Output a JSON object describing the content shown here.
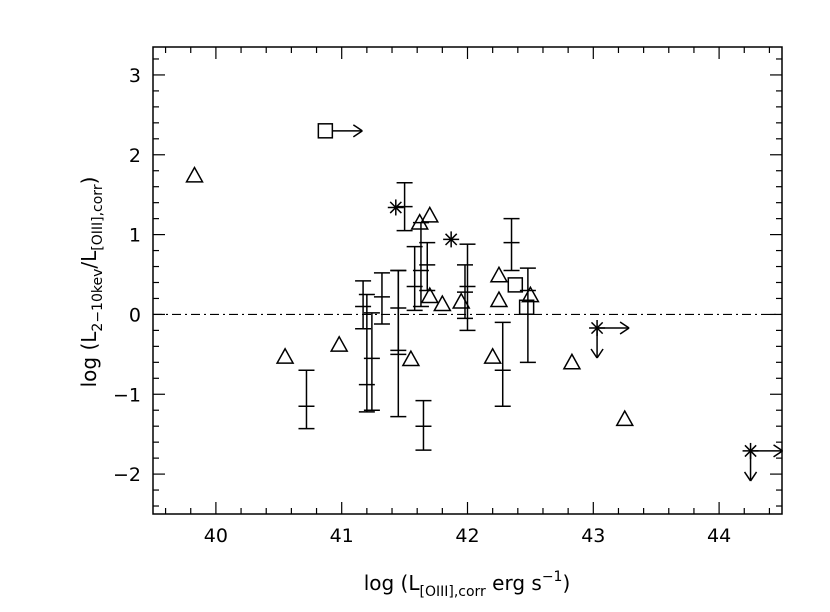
{
  "chart_data": {
    "type": "scatter",
    "title": "",
    "xlim": [
      39.5,
      44.5
    ],
    "ylim": [
      -2.5,
      3.35
    ],
    "x_ticks": [
      40,
      41,
      42,
      43,
      44
    ],
    "x_tick_labels": [
      "40",
      "41",
      "42",
      "43",
      "44"
    ],
    "y_ticks": [
      -2,
      -1,
      0,
      1,
      2,
      3
    ],
    "y_tick_labels": [
      "−2",
      "−1",
      "0",
      "1",
      "2",
      "3"
    ],
    "xlabel": {
      "pre": "log (L",
      "sub": "[OIII],corr",
      "mid": " erg s",
      "sup": "−1",
      "post": ")"
    },
    "ylabel": {
      "pre": "log (L",
      "sub1": "2−10kev",
      "mid": "/L",
      "sub2": "[OIII],corr",
      "post": ")"
    },
    "reference_line": {
      "y": 0,
      "style": "dash-dot"
    },
    "grid": false,
    "legend": "none",
    "marker_color": "#000000",
    "triangles": [
      {
        "x": 39.83,
        "y": 1.74
      },
      {
        "x": 40.55,
        "y": -0.53
      },
      {
        "x": 40.98,
        "y": -0.38
      },
      {
        "x": 41.55,
        "y": -0.56
      },
      {
        "x": 41.62,
        "y": 1.15
      },
      {
        "x": 41.7,
        "y": 1.24
      },
      {
        "x": 41.7,
        "y": 0.23
      },
      {
        "x": 41.8,
        "y": 0.13
      },
      {
        "x": 41.95,
        "y": 0.16
      },
      {
        "x": 42.2,
        "y": -0.53
      },
      {
        "x": 42.25,
        "y": 0.49
      },
      {
        "x": 42.25,
        "y": 0.18
      },
      {
        "x": 42.5,
        "y": 0.24
      },
      {
        "x": 42.83,
        "y": -0.6
      },
      {
        "x": 43.25,
        "y": -1.31
      }
    ],
    "squares": [
      {
        "x": 40.87,
        "y": 2.3,
        "arrow": "right"
      },
      {
        "x": 42.38,
        "y": 0.37
      },
      {
        "x": 42.47,
        "y": 0.09
      }
    ],
    "asterisks": [
      {
        "x": 41.43,
        "y": 1.34
      },
      {
        "x": 41.87,
        "y": 0.94
      },
      {
        "x": 43.03,
        "y": -0.17,
        "arrows": [
          "right",
          "down"
        ]
      },
      {
        "x": 44.25,
        "y": -1.71,
        "arrows": [
          "right",
          "down"
        ]
      }
    ],
    "error_bars": [
      {
        "x": 40.72,
        "y": -1.15,
        "lo": -1.43,
        "hi": -0.7
      },
      {
        "x": 41.17,
        "y": 0.1,
        "lo": -0.18,
        "hi": 0.42
      },
      {
        "x": 41.2,
        "y": -0.88,
        "lo": -1.22,
        "hi": 0.25
      },
      {
        "x": 41.24,
        "y": -0.55,
        "lo": -1.2,
        "hi": 0.02
      },
      {
        "x": 41.32,
        "y": 0.22,
        "lo": -0.12,
        "hi": 0.52
      },
      {
        "x": 41.45,
        "y": -0.45,
        "lo": -1.28,
        "hi": 0.55
      },
      {
        "x": 41.45,
        "y": 0.08,
        "lo": -0.5,
        "hi": 0.55
      },
      {
        "x": 41.5,
        "y": 1.35,
        "lo": 1.05,
        "hi": 1.65
      },
      {
        "x": 41.58,
        "y": 0.35,
        "lo": 0.05,
        "hi": 0.85
      },
      {
        "x": 41.63,
        "y": 0.55,
        "lo": 0.1,
        "hi": 1.15
      },
      {
        "x": 41.65,
        "y": -1.4,
        "lo": -1.7,
        "hi": -1.08
      },
      {
        "x": 41.68,
        "y": 0.62,
        "lo": 0.3,
        "hi": 0.9
      },
      {
        "x": 41.98,
        "y": 0.28,
        "lo": -0.05,
        "hi": 0.62
      },
      {
        "x": 42.0,
        "y": 0.35,
        "lo": -0.2,
        "hi": 0.88
      },
      {
        "x": 42.28,
        "y": -0.7,
        "lo": -1.15,
        "hi": -0.1
      },
      {
        "x": 42.35,
        "y": 0.9,
        "lo": 0.55,
        "hi": 1.2
      },
      {
        "x": 42.48,
        "y": 0.3,
        "lo": -0.6,
        "hi": 0.58
      }
    ]
  }
}
